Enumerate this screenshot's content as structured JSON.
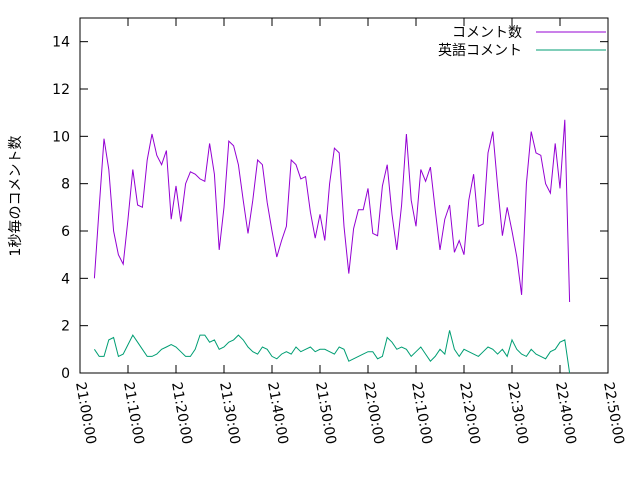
{
  "chart_data": {
    "type": "line",
    "ylabel": "1秒毎のコメント数",
    "x": [
      "21:03:00",
      "21:04:00",
      "21:05:00",
      "21:06:00",
      "21:07:00",
      "21:08:00",
      "21:09:00",
      "21:10:00",
      "21:11:00",
      "21:12:00",
      "21:13:00",
      "21:14:00",
      "21:15:00",
      "21:16:00",
      "21:17:00",
      "21:18:00",
      "21:19:00",
      "21:20:00",
      "21:21:00",
      "21:22:00",
      "21:23:00",
      "21:24:00",
      "21:25:00",
      "21:26:00",
      "21:27:00",
      "21:28:00",
      "21:29:00",
      "21:30:00",
      "21:31:00",
      "21:32:00",
      "21:33:00",
      "21:34:00",
      "21:35:00",
      "21:36:00",
      "21:37:00",
      "21:38:00",
      "21:39:00",
      "21:40:00",
      "21:41:00",
      "21:42:00",
      "21:43:00",
      "21:44:00",
      "21:45:00",
      "21:46:00",
      "21:47:00",
      "21:48:00",
      "21:49:00",
      "21:50:00",
      "21:51:00",
      "21:52:00",
      "21:53:00",
      "21:54:00",
      "21:55:00",
      "21:56:00",
      "21:57:00",
      "21:58:00",
      "21:59:00",
      "22:00:00",
      "22:01:00",
      "22:02:00",
      "22:03:00",
      "22:04:00",
      "22:05:00",
      "22:06:00",
      "22:07:00",
      "22:08:00",
      "22:09:00",
      "22:10:00",
      "22:11:00",
      "22:12:00",
      "22:13:00",
      "22:14:00",
      "22:15:00",
      "22:16:00",
      "22:17:00",
      "22:18:00",
      "22:19:00",
      "22:20:00",
      "22:21:00",
      "22:22:00",
      "22:23:00",
      "22:24:00",
      "22:25:00",
      "22:26:00",
      "22:27:00",
      "22:28:00",
      "22:29:00",
      "22:30:00",
      "22:31:00",
      "22:32:00",
      "22:33:00",
      "22:34:00",
      "22:35:00",
      "22:36:00",
      "22:37:00",
      "22:38:00",
      "22:39:00",
      "22:40:00",
      "22:41:00",
      "22:42:00"
    ],
    "series": [
      {
        "name": "コメント数",
        "color": "#9400d3",
        "values": [
          4.0,
          7.0,
          9.9,
          8.6,
          6.0,
          5.0,
          4.6,
          6.5,
          8.6,
          7.1,
          7.0,
          9.0,
          10.1,
          9.2,
          8.8,
          9.4,
          6.5,
          7.9,
          6.4,
          8.0,
          8.5,
          8.4,
          8.2,
          8.1,
          9.7,
          8.4,
          5.2,
          7.0,
          9.8,
          9.6,
          8.8,
          7.3,
          5.9,
          7.3,
          9.0,
          8.8,
          7.2,
          6.0,
          4.9,
          5.6,
          6.2,
          9.0,
          8.8,
          8.2,
          8.3,
          6.8,
          5.7,
          6.7,
          5.6,
          8.0,
          9.5,
          9.3,
          6.2,
          4.2,
          6.1,
          6.9,
          6.9,
          7.8,
          5.9,
          5.8,
          7.9,
          8.8,
          6.7,
          5.2,
          7.1,
          10.1,
          7.3,
          6.2,
          8.6,
          8.1,
          8.7,
          6.9,
          5.2,
          6.5,
          7.1,
          5.1,
          5.6,
          5.0,
          7.3,
          8.4,
          6.2,
          6.3,
          9.3,
          10.2,
          7.9,
          5.8,
          7.0,
          6.0,
          4.9,
          3.3,
          8.0,
          10.2,
          9.3,
          9.2,
          8.0,
          7.6,
          9.7,
          7.8,
          10.7,
          3.0
        ]
      },
      {
        "name": "英語コメント",
        "color": "#009e73",
        "values": [
          1.0,
          0.7,
          0.7,
          1.4,
          1.5,
          0.7,
          0.8,
          1.2,
          1.6,
          1.3,
          1.0,
          0.7,
          0.7,
          0.8,
          1.0,
          1.1,
          1.2,
          1.1,
          0.9,
          0.7,
          0.7,
          1.0,
          1.6,
          1.6,
          1.3,
          1.4,
          1.0,
          1.1,
          1.3,
          1.4,
          1.6,
          1.4,
          1.1,
          0.9,
          0.8,
          1.1,
          1.0,
          0.7,
          0.6,
          0.8,
          0.9,
          0.8,
          1.1,
          0.9,
          1.0,
          1.1,
          0.9,
          1.0,
          1.0,
          0.9,
          0.8,
          1.1,
          1.0,
          0.5,
          0.6,
          0.7,
          0.8,
          0.9,
          0.9,
          0.6,
          0.7,
          1.5,
          1.3,
          1.0,
          1.1,
          1.0,
          0.7,
          0.9,
          1.1,
          0.8,
          0.5,
          0.7,
          1.0,
          0.8,
          1.8,
          1.0,
          0.7,
          1.0,
          0.9,
          0.8,
          0.7,
          0.9,
          1.1,
          1.0,
          0.8,
          1.0,
          0.7,
          1.4,
          1.0,
          0.8,
          0.7,
          1.0,
          0.8,
          0.7,
          0.6,
          0.9,
          1.0,
          1.3,
          1.4,
          0.0
        ]
      }
    ],
    "xlim": [
      "21:00:00",
      "22:50:00"
    ],
    "xticks": [
      "21:00:00",
      "21:10:00",
      "21:20:00",
      "21:30:00",
      "21:40:00",
      "21:50:00",
      "22:00:00",
      "22:10:00",
      "22:20:00",
      "22:30:00",
      "22:40:00",
      "22:50:00"
    ],
    "ylim": [
      0,
      15
    ],
    "yticks": [
      0,
      2,
      4,
      6,
      8,
      10,
      12,
      14
    ],
    "legend": "top-right"
  }
}
